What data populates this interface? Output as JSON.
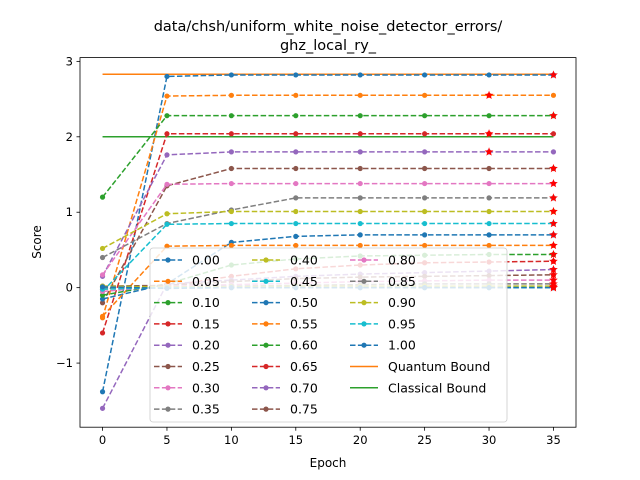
{
  "chart_data": {
    "type": "line",
    "title": "data/chsh/uniform_white_noise_detector_errors/\nghz_local_ry_",
    "xlabel": "Epoch",
    "ylabel": "Score",
    "xlim": [
      -1.75,
      36.75
    ],
    "ylim": [
      -1.85,
      3.05
    ],
    "x_ticks": [
      0,
      5,
      10,
      15,
      20,
      25,
      30,
      35
    ],
    "y_ticks": [
      -1,
      0,
      1,
      2,
      3
    ],
    "x": [
      0,
      5,
      10,
      15,
      20,
      25,
      30,
      35
    ],
    "grid": false,
    "legend": "lower-center, 3 columns",
    "series": [
      {
        "name": "0.00",
        "color": "#1f77b4",
        "values": [
          -1.38,
          2.8,
          2.82,
          2.82,
          2.82,
          2.82,
          2.82,
          2.82
        ],
        "star_at": [
          35
        ]
      },
      {
        "name": "0.05",
        "color": "#ff7f0e",
        "values": [
          -0.4,
          2.54,
          2.55,
          2.55,
          2.55,
          2.55,
          2.55,
          2.55
        ],
        "star_at": [
          30
        ]
      },
      {
        "name": "0.10",
        "color": "#2ca02c",
        "values": [
          1.2,
          2.28,
          2.28,
          2.28,
          2.28,
          2.28,
          2.28,
          2.28
        ],
        "star_at": [
          35
        ]
      },
      {
        "name": "0.15",
        "color": "#d62728",
        "values": [
          -0.6,
          2.04,
          2.04,
          2.04,
          2.04,
          2.04,
          2.04,
          2.04
        ],
        "star_at": [
          30
        ]
      },
      {
        "name": "0.20",
        "color": "#9467bd",
        "values": [
          0.15,
          1.76,
          1.8,
          1.8,
          1.8,
          1.8,
          1.8,
          1.8
        ],
        "star_at": [
          30
        ]
      },
      {
        "name": "0.25",
        "color": "#8c564b",
        "values": [
          -0.2,
          1.35,
          1.58,
          1.58,
          1.58,
          1.58,
          1.58,
          1.58
        ],
        "star_at": [
          35
        ]
      },
      {
        "name": "0.30",
        "color": "#e377c2",
        "values": [
          0.17,
          1.37,
          1.38,
          1.38,
          1.38,
          1.38,
          1.38,
          1.38
        ],
        "star_at": [
          35
        ]
      },
      {
        "name": "0.35",
        "color": "#7f7f7f",
        "values": [
          0.4,
          0.85,
          1.03,
          1.19,
          1.19,
          1.19,
          1.19,
          1.19
        ],
        "star_at": [
          35
        ]
      },
      {
        "name": "0.40",
        "color": "#bcbd22",
        "values": [
          0.52,
          0.98,
          1.01,
          1.01,
          1.01,
          1.01,
          1.01,
          1.01
        ],
        "star_at": [
          35
        ]
      },
      {
        "name": "0.45",
        "color": "#17becf",
        "values": [
          -0.05,
          0.84,
          0.85,
          0.85,
          0.85,
          0.85,
          0.85,
          0.85
        ],
        "star_at": [
          35
        ]
      },
      {
        "name": "0.50",
        "color": "#1f77b4",
        "values": [
          -0.15,
          0.05,
          0.6,
          0.68,
          0.7,
          0.7,
          0.7,
          0.7
        ],
        "star_at": [
          35
        ]
      },
      {
        "name": "0.55",
        "color": "#ff7f0e",
        "values": [
          -0.38,
          0.55,
          0.56,
          0.56,
          0.56,
          0.56,
          0.56,
          0.56
        ],
        "star_at": [
          35
        ]
      },
      {
        "name": "0.60",
        "color": "#2ca02c",
        "values": [
          -0.1,
          0.05,
          0.3,
          0.38,
          0.42,
          0.43,
          0.44,
          0.44
        ],
        "star_at": [
          35
        ]
      },
      {
        "name": "0.65",
        "color": "#d62728",
        "values": [
          -0.02,
          0.02,
          0.15,
          0.25,
          0.3,
          0.33,
          0.34,
          0.35
        ],
        "star_at": [
          35
        ]
      },
      {
        "name": "0.70",
        "color": "#9467bd",
        "values": [
          -1.6,
          0.05,
          0.1,
          0.15,
          0.18,
          0.2,
          0.22,
          0.24
        ],
        "star_at": [
          35
        ]
      },
      {
        "name": "0.75",
        "color": "#8c564b",
        "values": [
          0.02,
          0.03,
          0.08,
          0.12,
          0.14,
          0.15,
          0.16,
          0.17
        ],
        "star_at": [
          35
        ]
      },
      {
        "name": "0.80",
        "color": "#e377c2",
        "values": [
          -0.05,
          0.02,
          0.04,
          0.06,
          0.08,
          0.09,
          0.1,
          0.1
        ],
        "star_at": [
          35
        ]
      },
      {
        "name": "0.85",
        "color": "#7f7f7f",
        "values": [
          0.0,
          0.01,
          0.02,
          0.03,
          0.04,
          0.05,
          0.05,
          0.05
        ],
        "star_at": [
          35
        ]
      },
      {
        "name": "0.90",
        "color": "#bcbd22",
        "values": [
          0.02,
          0.01,
          0.01,
          0.02,
          0.02,
          0.02,
          0.02,
          0.02
        ],
        "star_at": [
          35
        ]
      },
      {
        "name": "0.95",
        "color": "#17becf",
        "values": [
          -0.02,
          0.0,
          0.0,
          0.0,
          0.0,
          0.0,
          0.0,
          0.0
        ],
        "star_at": [
          35
        ]
      },
      {
        "name": "1.00",
        "color": "#1f77b4",
        "values": [
          0.01,
          -0.01,
          0.0,
          0.0,
          0.0,
          0.0,
          0.0,
          0.0
        ],
        "star_at": [
          35
        ]
      }
    ],
    "bounds": [
      {
        "name": "Quantum Bound",
        "color": "#ff7f0e",
        "value": 2.83,
        "x_range": [
          0,
          35
        ]
      },
      {
        "name": "Classical Bound",
        "color": "#2ca02c",
        "value": 2.0,
        "x_range": [
          0,
          35
        ]
      }
    ],
    "star_color": "#ff0000"
  }
}
